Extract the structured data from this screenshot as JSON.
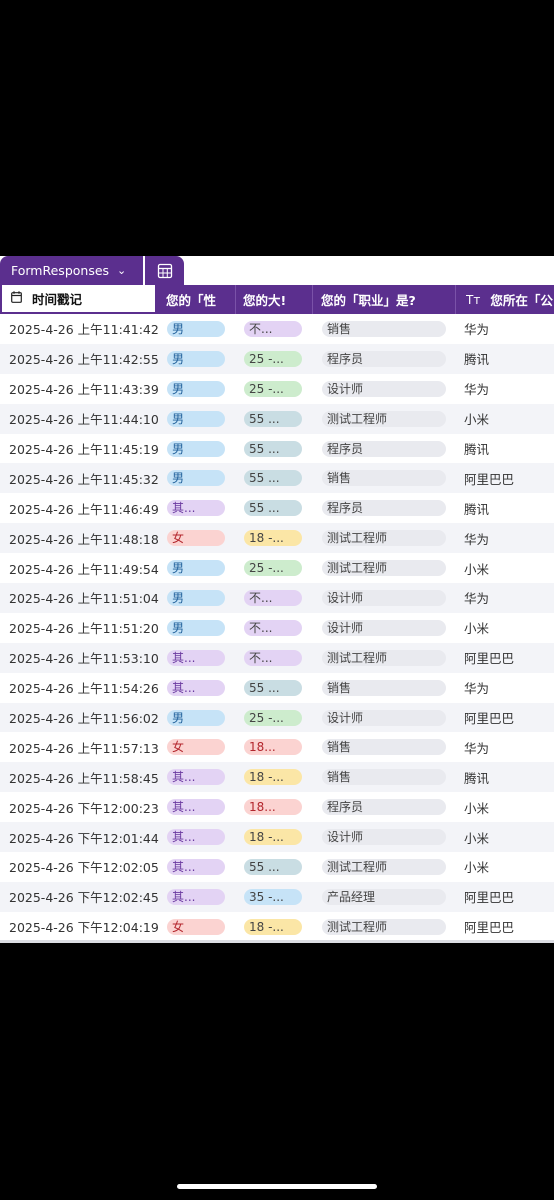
{
  "tabbar": {
    "sheet_name": "FormResponses",
    "chevron_icon": "chevron-down-icon",
    "grid_icon": "grid-view-icon"
  },
  "header": {
    "columns": [
      {
        "label": "时间戳记",
        "icon": "calendar-icon"
      },
      {
        "label": "您的「性",
        "icon": ""
      },
      {
        "label": "您的大!",
        "icon": ""
      },
      {
        "label": "您的「职业」是?",
        "icon": ""
      },
      {
        "label": "您所在「公",
        "icon": "text-type-icon",
        "icon_glyph": "Tт"
      }
    ]
  },
  "colors": {
    "header_bg": "#5b2f8e",
    "male": "#c6e3f7",
    "female": "#fbd3d1",
    "other": "#e3d3f4",
    "age_unknown": "#e3d3f4",
    "age_25": "#cdeccd",
    "age_55": "#c9dde3",
    "age_18_yellow": "#fbe6a6",
    "age_18_red": "#fbd3d1",
    "age_35": "#c6e3f7",
    "job": "#e9eaef"
  },
  "rows": [
    {
      "ts": "2025-4-26 上午11:41:42",
      "gender": "男",
      "gtype": "male",
      "age": "不...",
      "atype": "age_unknown",
      "job": "销售",
      "company": "华为"
    },
    {
      "ts": "2025-4-26 上午11:42:55",
      "gender": "男",
      "gtype": "male",
      "age": "25 -...",
      "atype": "age_25",
      "job": "程序员",
      "company": "腾讯"
    },
    {
      "ts": "2025-4-26 上午11:43:39",
      "gender": "男",
      "gtype": "male",
      "age": "25 -...",
      "atype": "age_25",
      "job": "设计师",
      "company": "华为"
    },
    {
      "ts": "2025-4-26 上午11:44:10",
      "gender": "男",
      "gtype": "male",
      "age": "55 ...",
      "atype": "age_55",
      "job": "测试工程师",
      "company": "小米"
    },
    {
      "ts": "2025-4-26 上午11:45:19",
      "gender": "男",
      "gtype": "male",
      "age": "55 ...",
      "atype": "age_55",
      "job": "程序员",
      "company": "腾讯"
    },
    {
      "ts": "2025-4-26 上午11:45:32",
      "gender": "男",
      "gtype": "male",
      "age": "55 ...",
      "atype": "age_55",
      "job": "销售",
      "company": "阿里巴巴"
    },
    {
      "ts": "2025-4-26 上午11:46:49",
      "gender": "其...",
      "gtype": "other",
      "age": "55 ...",
      "atype": "age_55",
      "job": "程序员",
      "company": "腾讯"
    },
    {
      "ts": "2025-4-26 上午11:48:18",
      "gender": "女",
      "gtype": "female",
      "age": "18 -...",
      "atype": "age_18_yellow",
      "job": "测试工程师",
      "company": "华为"
    },
    {
      "ts": "2025-4-26 上午11:49:54",
      "gender": "男",
      "gtype": "male",
      "age": "25 -...",
      "atype": "age_25",
      "job": "测试工程师",
      "company": "小米"
    },
    {
      "ts": "2025-4-26 上午11:51:04",
      "gender": "男",
      "gtype": "male",
      "age": "不...",
      "atype": "age_unknown",
      "job": "设计师",
      "company": "华为"
    },
    {
      "ts": "2025-4-26 上午11:51:20",
      "gender": "男",
      "gtype": "male",
      "age": "不...",
      "atype": "age_unknown",
      "job": "设计师",
      "company": "小米"
    },
    {
      "ts": "2025-4-26 上午11:53:10",
      "gender": "其...",
      "gtype": "other",
      "age": "不...",
      "atype": "age_unknown",
      "job": "测试工程师",
      "company": "阿里巴巴"
    },
    {
      "ts": "2025-4-26 上午11:54:26",
      "gender": "其...",
      "gtype": "other",
      "age": "55 ...",
      "atype": "age_55",
      "job": "销售",
      "company": "华为"
    },
    {
      "ts": "2025-4-26 上午11:56:02",
      "gender": "男",
      "gtype": "male",
      "age": "25 -...",
      "atype": "age_25",
      "job": "设计师",
      "company": "阿里巴巴"
    },
    {
      "ts": "2025-4-26 上午11:57:13",
      "gender": "女",
      "gtype": "female",
      "age": "18...",
      "atype": "age_18_red",
      "job": "销售",
      "company": "华为"
    },
    {
      "ts": "2025-4-26 上午11:58:45",
      "gender": "其...",
      "gtype": "other",
      "age": "18 -...",
      "atype": "age_18_yellow",
      "job": "销售",
      "company": "腾讯"
    },
    {
      "ts": "2025-4-26 下午12:00:23",
      "gender": "其...",
      "gtype": "other",
      "age": "18...",
      "atype": "age_18_red",
      "job": "程序员",
      "company": "小米"
    },
    {
      "ts": "2025-4-26 下午12:01:44",
      "gender": "其...",
      "gtype": "other",
      "age": "18 -...",
      "atype": "age_18_yellow",
      "job": "设计师",
      "company": "小米"
    },
    {
      "ts": "2025-4-26 下午12:02:05",
      "gender": "其...",
      "gtype": "other",
      "age": "55 ...",
      "atype": "age_55",
      "job": "测试工程师",
      "company": "小米"
    },
    {
      "ts": "2025-4-26 下午12:02:45",
      "gender": "其...",
      "gtype": "other",
      "age": "35 -...",
      "atype": "age_35",
      "job": "产品经理",
      "company": "阿里巴巴"
    },
    {
      "ts": "2025-4-26 下午12:04:19",
      "gender": "女",
      "gtype": "female",
      "age": "18 -...",
      "atype": "age_18_yellow",
      "job": "测试工程师",
      "company": "阿里巴巴"
    }
  ]
}
